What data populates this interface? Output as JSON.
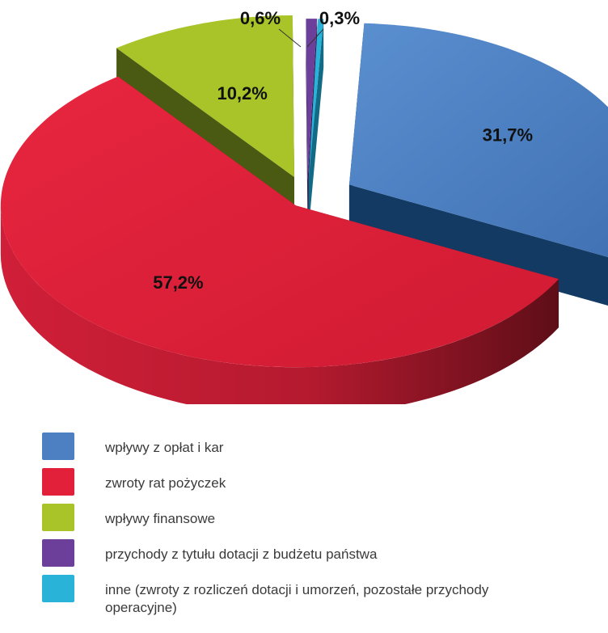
{
  "chart_data": {
    "type": "pie",
    "title": "",
    "slices": [
      {
        "label": "wpływy z opłat i kar",
        "value": 31.7,
        "display": "31,7%",
        "color": "#4d80c2",
        "dark": "#123a63"
      },
      {
        "label": "zwroty rat pożyczek",
        "value": 57.2,
        "display": "57,2%",
        "color": "#e2203a",
        "dark": "#7e1420"
      },
      {
        "label": "wpływy finansowe",
        "value": 10.2,
        "display": "10,2%",
        "color": "#a8c428",
        "dark": "#4a5a12"
      },
      {
        "label": "przychody z tytułu dotacji z budżetu państwa",
        "value": 0.6,
        "display": "0,6%",
        "color": "#6b3f9a",
        "dark": "#33184d"
      },
      {
        "label": "inne (zwroty z rozliczeń dotacji i umorzeń, pozostałe przychody operacyjne)",
        "value": 0.3,
        "display": "0,3%",
        "color": "#2ab3d9",
        "dark": "#136a85"
      }
    ],
    "legend_position": "bottom",
    "exploded": true,
    "three_d": true
  }
}
